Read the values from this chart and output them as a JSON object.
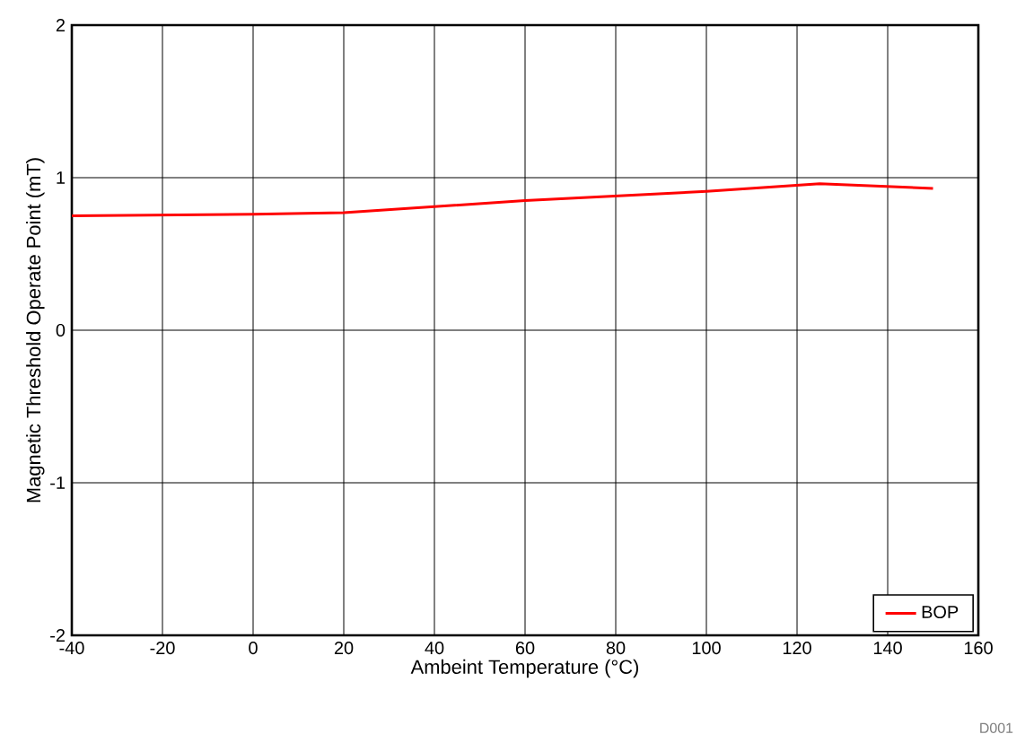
{
  "chart_data": {
    "type": "line",
    "xlabel": "Ambeint Temperature (°C)",
    "ylabel": "Magnetic Threshold Operate Point (mT)",
    "x": [
      -40,
      0,
      20,
      60,
      100,
      125,
      150
    ],
    "series": [
      {
        "name": "BOP",
        "color": "#ff0000",
        "values": [
          0.75,
          0.76,
          0.77,
          0.85,
          0.91,
          0.96,
          0.93
        ]
      }
    ],
    "xlim": [
      -40,
      160
    ],
    "xticks": [
      -40,
      -20,
      0,
      20,
      40,
      60,
      80,
      100,
      120,
      140,
      160
    ],
    "ylim": [
      -2,
      2
    ],
    "yticks": [
      -2,
      -1,
      0,
      1,
      2
    ],
    "grid": true,
    "legend": "bottom right",
    "marker": "none",
    "line_style": "solid",
    "annotations": [
      "D001"
    ]
  }
}
